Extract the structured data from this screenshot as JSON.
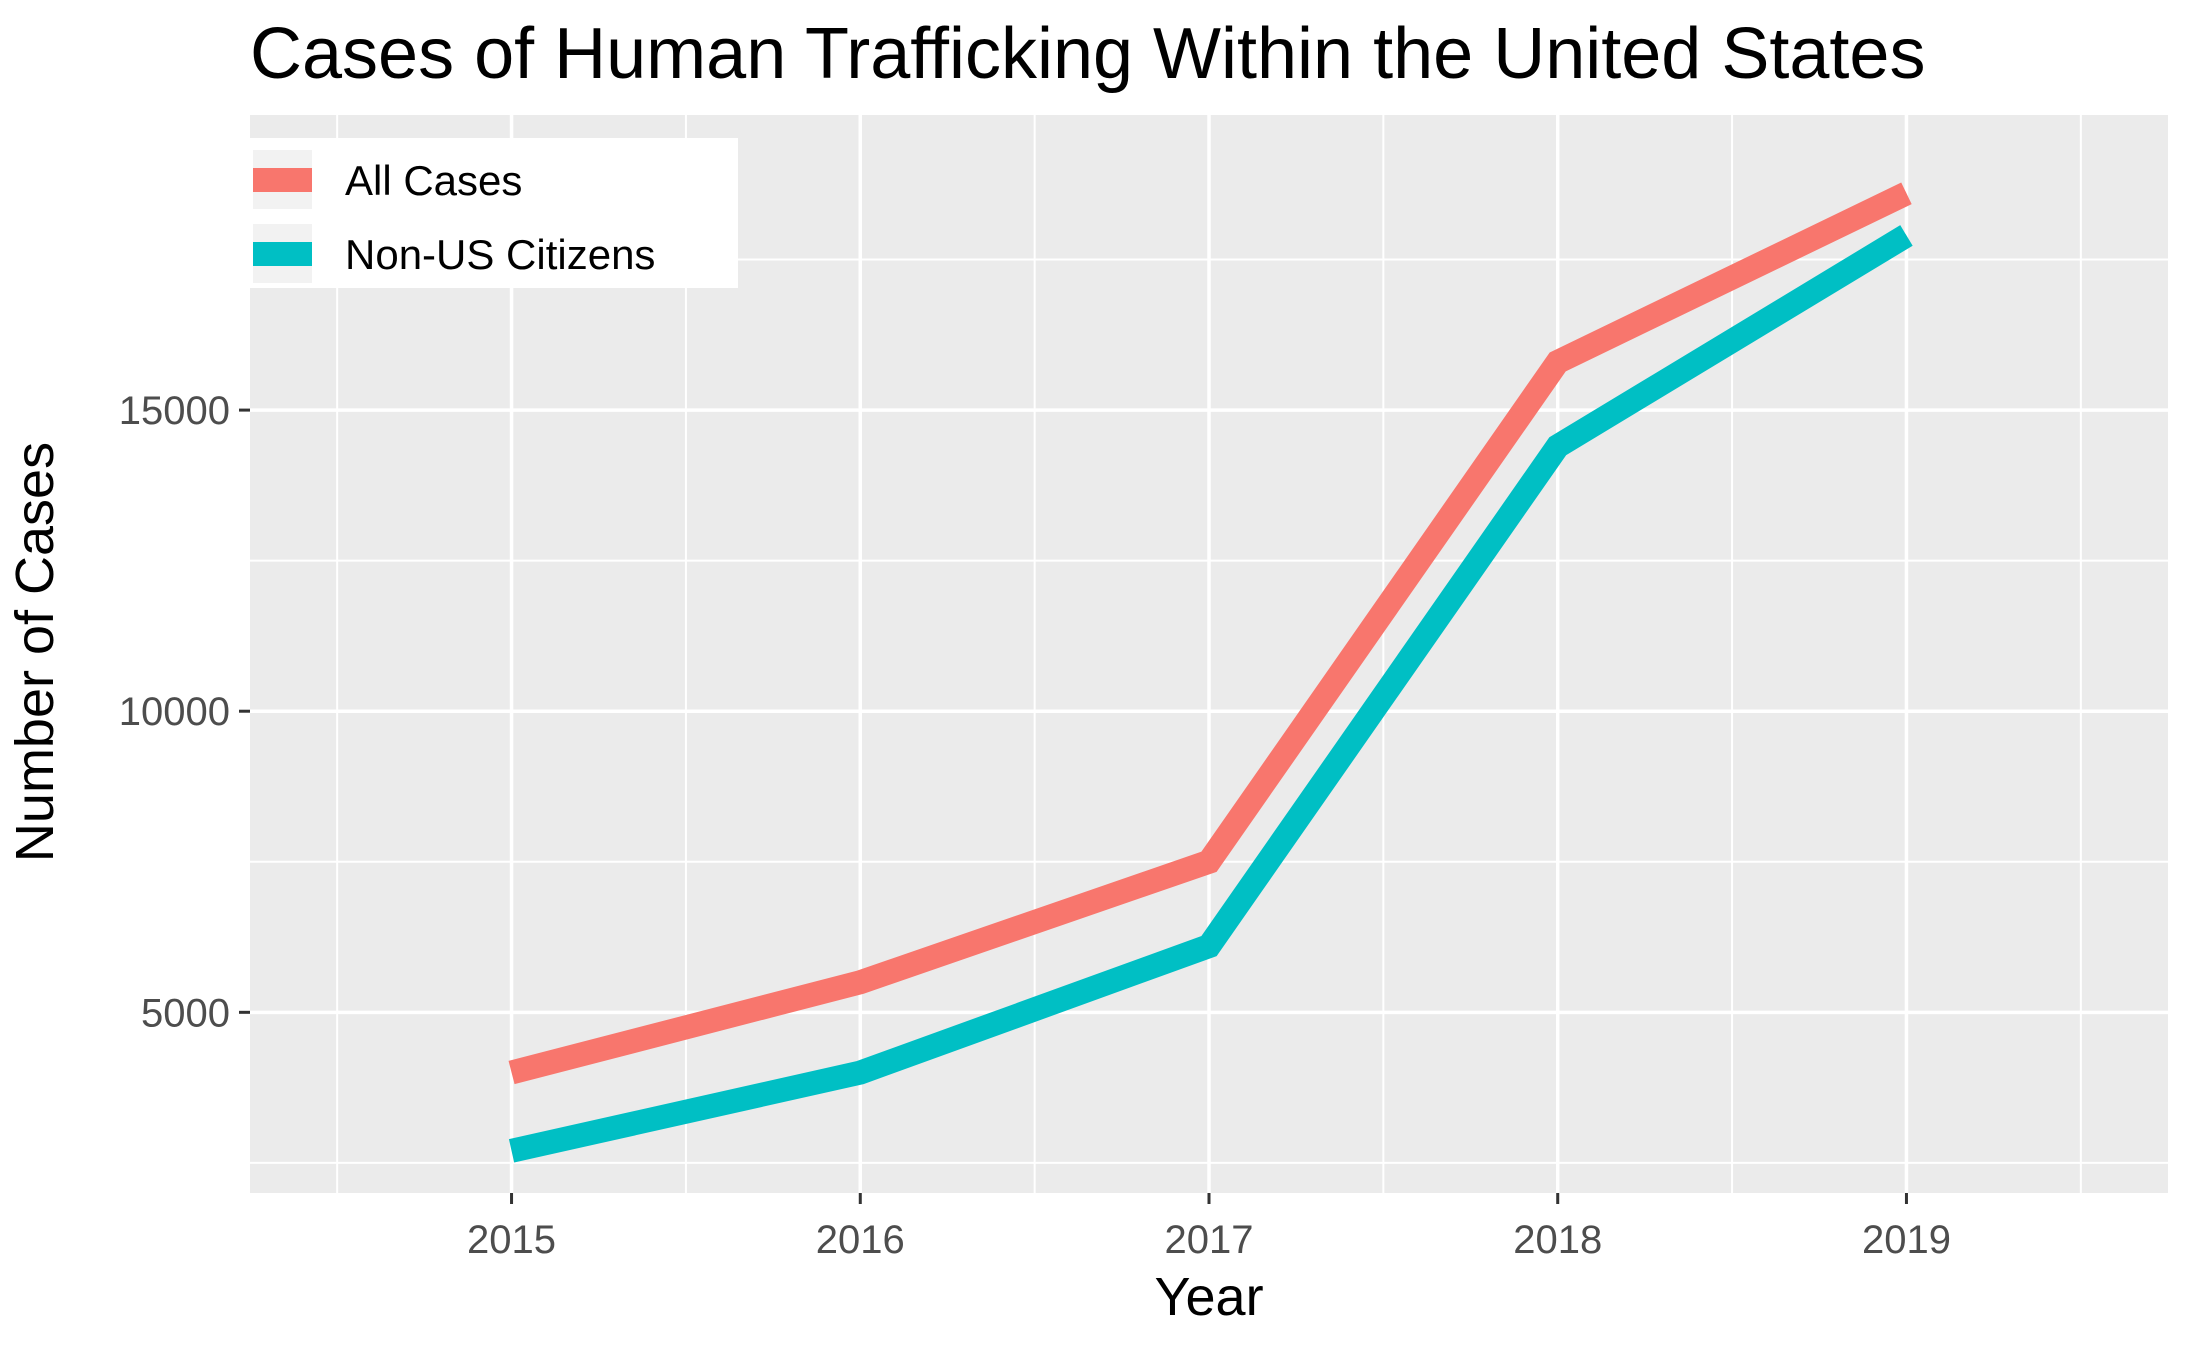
{
  "chart_data": {
    "type": "line",
    "title": "Cases of Human Trafficking Within the United States",
    "xlabel": "Year",
    "ylabel": "Number of Cases",
    "categories": [
      2015,
      2016,
      2017,
      2018,
      2019
    ],
    "x_ticks": [
      "2015",
      "2016",
      "2017",
      "2018",
      "2019"
    ],
    "y_ticks": [
      5000,
      10000,
      15000
    ],
    "y_tick_labels": [
      "5000",
      "10000",
      "15000"
    ],
    "xlim": [
      2014.25,
      2019.75
    ],
    "ylim": [
      2000,
      19900
    ],
    "grid": true,
    "legend_position": "top-left",
    "series": [
      {
        "name": "All Cases",
        "color": "#F8766D",
        "values": [
          4000,
          5500,
          7500,
          15800,
          18600
        ]
      },
      {
        "name": "Non-US Citizens",
        "color": "#00BFC4",
        "values": [
          2700,
          4000,
          6100,
          14400,
          17900
        ]
      }
    ],
    "panel_background": "#EBEBEB",
    "grid_color": "#FFFFFF"
  }
}
